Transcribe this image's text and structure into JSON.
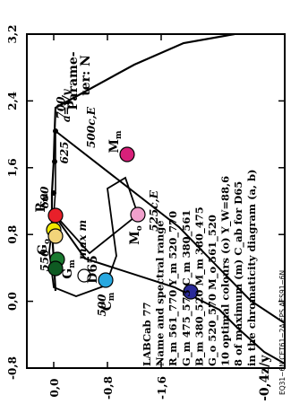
{
  "chart_data": {
    "type": "scatter",
    "orientation": "rotated-90-ccw",
    "x_axis": {
      "label": "a=x/y",
      "ticks": [
        "-0,8",
        "0,0",
        "0,8",
        "1,6",
        "2,4",
        "3,2"
      ],
      "range": [
        -0.8,
        3.2
      ]
    },
    "y_axis": {
      "label": "b=-0,4z/y",
      "ticks": [
        "0,0",
        "-0,8",
        "-1,6"
      ],
      "range": [
        0.3,
        -2.0
      ]
    },
    "curve_labels": {
      "parameter_label_1": "Parame-",
      "parameter_label_2": "ter:",
      "parameter_symbol": "N",
      "label_500cE": "500c,E",
      "label_525cE": "525c,E",
      "label_700": "700",
      "label_625": "625",
      "label_600": "600",
      "label_550": "550",
      "label_500": "500",
      "label_max": "max",
      "label_m": "m",
      "label_d65": "D65"
    },
    "points": [
      {
        "name": "R",
        "sub": "m",
        "a": 1.5,
        "b": 0.0,
        "color": "#e8202a"
      },
      {
        "name": "M",
        "sub": "m",
        "a": 2.05,
        "b": -1.1,
        "color": "#d8207a"
      },
      {
        "name": "M",
        "sub": "o",
        "a": 1.55,
        "b": -0.88,
        "color": "#f0a0cc"
      },
      {
        "name": "C",
        "sub": "m",
        "a": 0.55,
        "b": -0.7,
        "color": "#28a8e0"
      },
      {
        "name": "Y",
        "sub": "m",
        "a": 0.9,
        "b": 0.02,
        "color": "#f0e800"
      },
      {
        "name": "G",
        "sub": "o",
        "a": 0.82,
        "b": -0.02,
        "color": "#f2d47a"
      },
      {
        "name": "G",
        "sub": "m",
        "a": 0.52,
        "b": -0.03,
        "color": "#1a7a30"
      },
      {
        "name": "G",
        "sub": "m2",
        "a": 0.42,
        "b": 0.02,
        "color": "#0e5a22"
      },
      {
        "name": "B",
        "sub": "m",
        "a": 0.08,
        "b": -1.4,
        "color": "#2a2a9a"
      },
      {
        "name": "D65",
        "sub": "",
        "a": 0.98,
        "b": -0.5,
        "color": "#ffffff"
      }
    ],
    "legend": {
      "title": "LABCab 77",
      "line1": "Name and spectral range",
      "line2": "R_m 561_770  Y_m 520_770",
      "line3": "G_m 475_573  C_m 380_561",
      "line4": "B_m 380_520  M_m 380_475",
      "line5": "G_o 520_570  M_o 561_520",
      "line6": "10 optimal colours (o)  Y_W=88,6",
      "line7": "8 of maximum (m) C_ab for D65",
      "line8": "in the chromaticity diagram (a, b)"
    },
    "footer": "EQ31−6N CET61−2A EPS AES91−6N"
  }
}
